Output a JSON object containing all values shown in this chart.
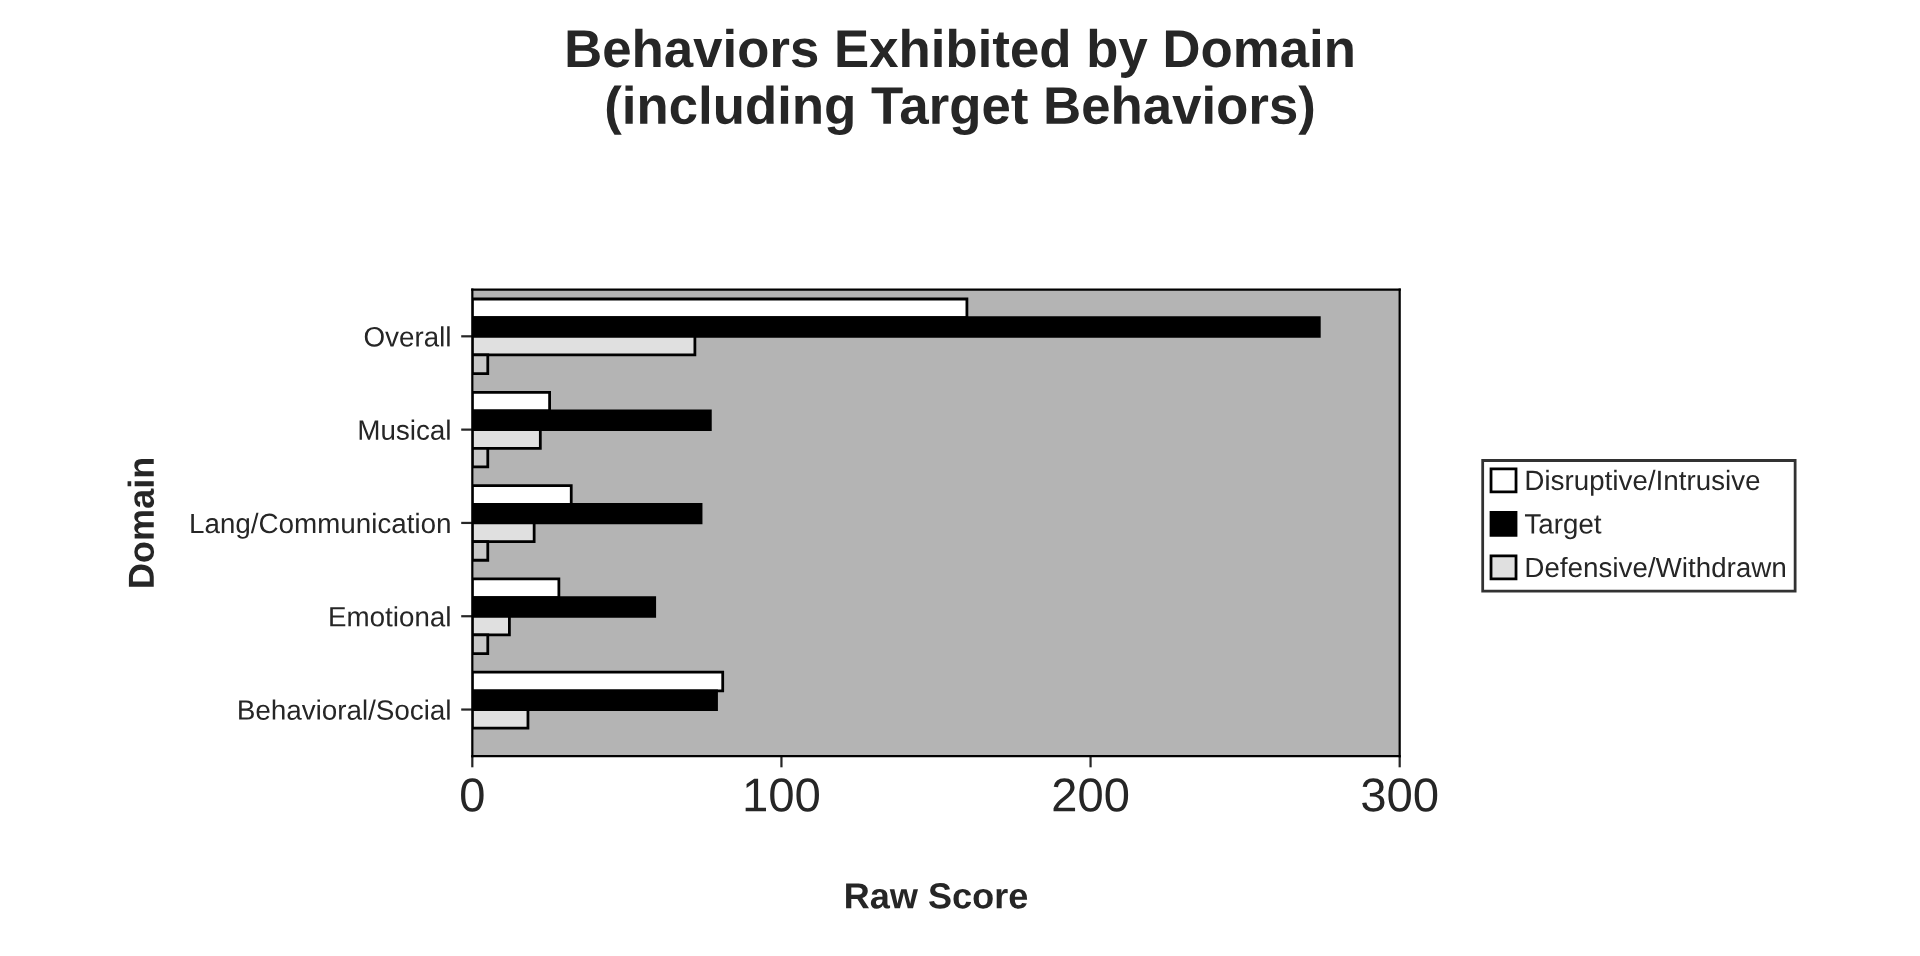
{
  "chart_data": {
    "type": "bar",
    "orientation": "horizontal",
    "title": "Behaviors Exhibited by Domain\n(including Target Behaviors)",
    "xlabel": "Raw Score",
    "ylabel": "Domain",
    "categories": [
      "Overall",
      "Musical",
      "Lang/Communication",
      "Emotional",
      "Behavioral/Social"
    ],
    "series": [
      {
        "name": "Disruptive/Intrusive",
        "color": "#ffffff",
        "values": [
          160,
          25,
          32,
          28,
          81
        ]
      },
      {
        "name": "Target",
        "color": "#000000",
        "values": [
          274,
          77,
          74,
          59,
          79
        ]
      },
      {
        "name": "Defensive/Withdrawn",
        "color": "#e0e0e0",
        "values": [
          72,
          22,
          20,
          12,
          18
        ]
      },
      {
        "color": "#c8c8c8",
        "values": [
          5,
          5,
          5,
          5,
          null
        ]
      }
    ],
    "xlim": [
      0,
      300
    ],
    "xticks": [
      0,
      100,
      200,
      300
    ],
    "grid": false,
    "legend": "right"
  }
}
